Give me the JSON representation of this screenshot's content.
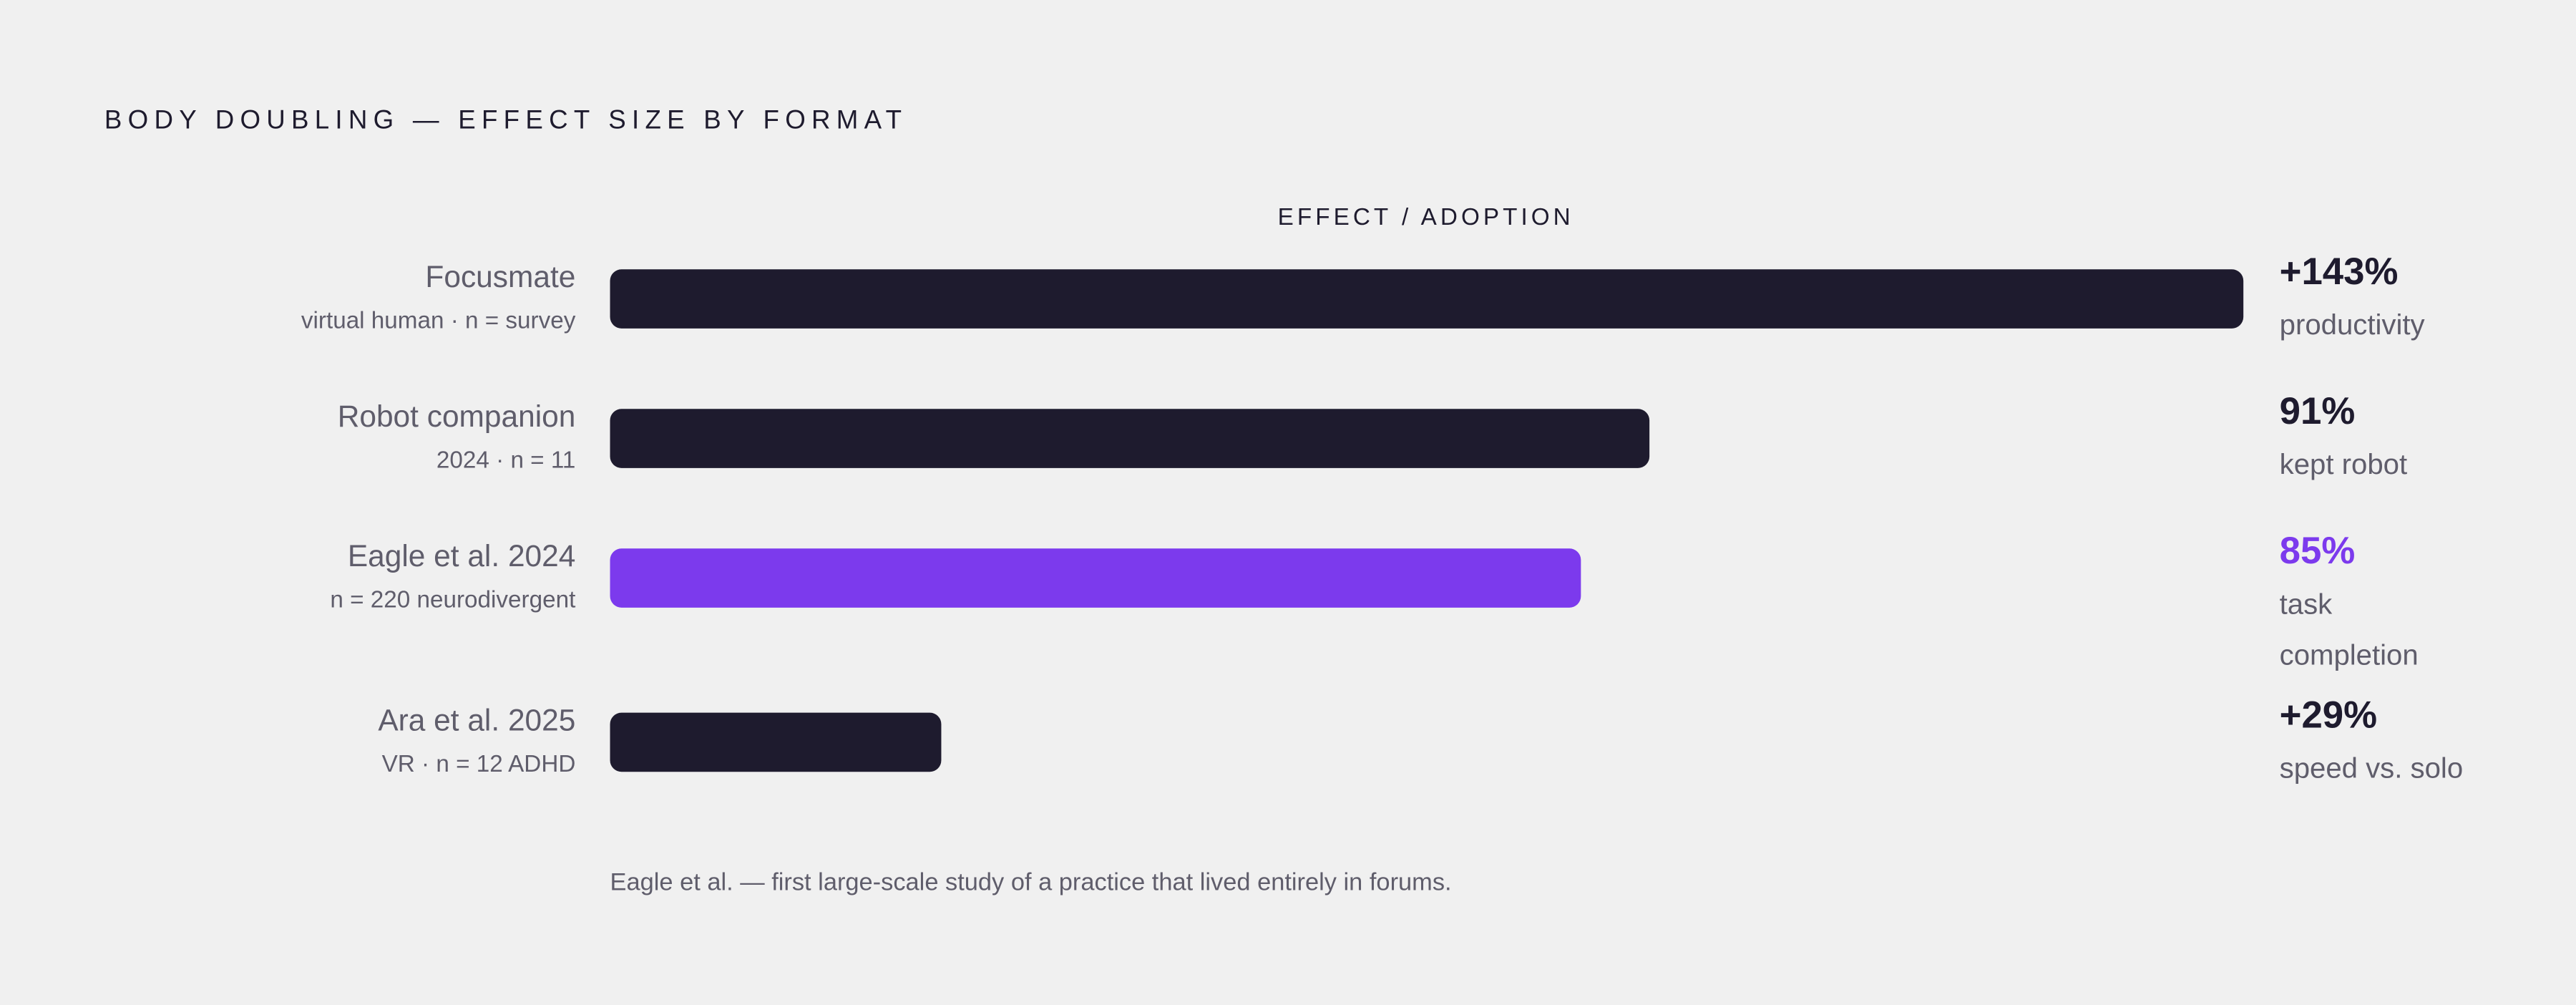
{
  "chart_data": {
    "type": "bar",
    "orientation": "horizontal",
    "title": "BODY DOUBLING — EFFECT SIZE BY FORMAT",
    "axis_label": "EFFECT / ADOPTION",
    "categories": [
      "Focusmate",
      "Robot companion",
      "Eagle et al. 2024",
      "Ara et al. 2025"
    ],
    "sublabels": [
      "virtual human · n = survey",
      "2024 · n = 11",
      "n = 220 neurodivergent",
      "VR · n = 12 ADHD"
    ],
    "values": [
      143,
      91,
      85,
      29
    ],
    "value_labels": [
      "+143%",
      "91%",
      "85%",
      "+29%"
    ],
    "metrics": [
      "productivity",
      "kept robot",
      "task completion",
      "speed vs. solo"
    ],
    "colors": [
      "#1e1b2e",
      "#1e1b2e",
      "#7c3aed",
      "#1e1b2e"
    ],
    "xlim": [
      0,
      143
    ],
    "footnote": "Eagle et al. — first large-scale study of a practice that lived entirely in forums."
  }
}
